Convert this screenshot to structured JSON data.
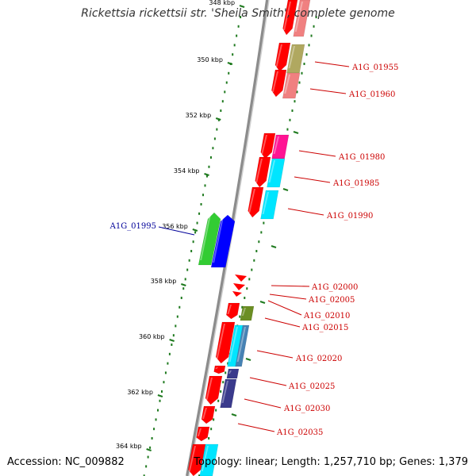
{
  "title": "Rickettsia rickettsii str. 'Sheila Smith', complete genome",
  "accession": "Accession: NC_009882",
  "summary": "Topology: linear; Length: 1,257,710 bp; Genes: 1,379",
  "colors": {
    "backbone": "#8c8c8c",
    "tick": "#1f7a1f",
    "label_forward": "#000099",
    "label_reverse": "#cc0000",
    "gene_red": "#ff0000",
    "gene_pink": "#f08080",
    "gene_olive": "#b0a860",
    "gene_magenta": "#ff1493",
    "gene_cyan": "#00e5ff",
    "gene_green": "#33cc33",
    "gene_blue": "#0000ff",
    "gene_darkgreen": "#6b8e23",
    "gene_steel": "#4682b4",
    "gene_navy": "#3a3a8c"
  },
  "ticks": [
    {
      "label": "348 kbp"
    },
    {
      "label": "350 kbp"
    },
    {
      "label": "352 kbp"
    },
    {
      "label": "354 kbp"
    },
    {
      "label": "356 kbp"
    },
    {
      "label": "358 kbp"
    },
    {
      "label": "360 kbp"
    },
    {
      "label": "362 kbp"
    },
    {
      "label": "364 kbp"
    }
  ],
  "gene_labels": [
    {
      "name": "A1G_01955",
      "strand": "reverse"
    },
    {
      "name": "A1G_01960",
      "strand": "reverse"
    },
    {
      "name": "A1G_01980",
      "strand": "reverse"
    },
    {
      "name": "A1G_01985",
      "strand": "reverse"
    },
    {
      "name": "A1G_01990",
      "strand": "reverse"
    },
    {
      "name": "A1G_01995",
      "strand": "forward"
    },
    {
      "name": "A1G_02000",
      "strand": "reverse"
    },
    {
      "name": "A1G_02005",
      "strand": "reverse"
    },
    {
      "name": "A1G_02010",
      "strand": "reverse"
    },
    {
      "name": "A1G_02015",
      "strand": "reverse"
    },
    {
      "name": "A1G_02020",
      "strand": "reverse"
    },
    {
      "name": "A1G_02025",
      "strand": "reverse"
    },
    {
      "name": "A1G_02030",
      "strand": "reverse"
    },
    {
      "name": "A1G_02035",
      "strand": "reverse"
    }
  ]
}
